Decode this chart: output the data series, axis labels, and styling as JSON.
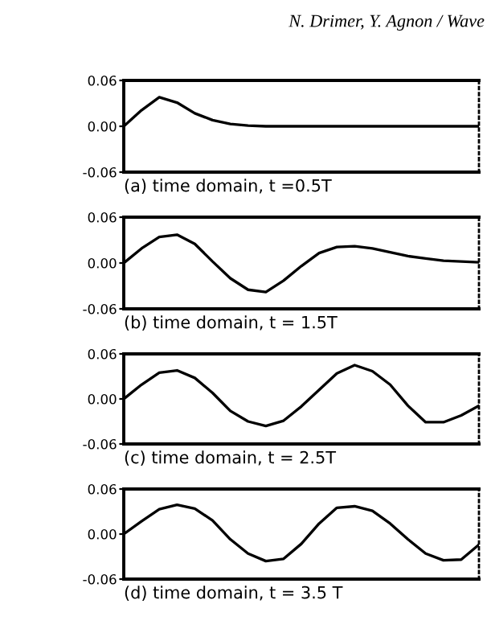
{
  "chart_data": [
    {
      "type": "line",
      "annotations": [
        "N. Drimer, Y. Agnon / Wave"
      ],
      "xlabel": "(a) time domain, t =0.5T",
      "categories": [
        null,
        null,
        null,
        null,
        null,
        null,
        null,
        null,
        null,
        null,
        null,
        null,
        null,
        null,
        null,
        null,
        null,
        null,
        null,
        null,
        null
      ],
      "series": [
        {
          "color": "#000000",
          "values": [
            0,
            0.021,
            0.038,
            0.031,
            0.017,
            0.008,
            0.003,
            0.001,
            0,
            0,
            0,
            0,
            0,
            0,
            0,
            0,
            0,
            0,
            0,
            0,
            0
          ]
        }
      ],
      "ylim": [
        -0.06,
        0.06
      ],
      "yticks": [
        {
          "value": 0.06,
          "label": "0.06"
        },
        {
          "value": 0,
          "label": "0.00"
        },
        {
          "value": -0.06,
          "label": "-0.06"
        }
      ],
      "tick_labels": "y",
      "grid": false,
      "legend": false
    },
    {
      "type": "line",
      "xlabel": "(b) time domain, t = 1.5T",
      "categories": [
        null,
        null,
        null,
        null,
        null,
        null,
        null,
        null,
        null,
        null,
        null,
        null,
        null,
        null,
        null,
        null,
        null,
        null,
        null,
        null,
        null
      ],
      "series": [
        {
          "color": "#000000",
          "values": [
            0,
            0.019,
            0.034,
            0.037,
            0.025,
            0.002,
            -0.02,
            -0.035,
            -0.038,
            -0.023,
            -0.004,
            0.013,
            0.021,
            0.022,
            0.019,
            0.014,
            0.009,
            0.006,
            0.003,
            0.002,
            0.001
          ]
        }
      ],
      "ylim": [
        -0.06,
        0.06
      ],
      "yticks": [
        {
          "value": 0.06,
          "label": "0.06"
        },
        {
          "value": 0,
          "label": "0.00"
        },
        {
          "value": -0.06,
          "label": "-0.06"
        }
      ],
      "tick_labels": "y",
      "grid": false,
      "legend": false
    },
    {
      "type": "line",
      "xlabel": "(c) time domain, t = 2.5T",
      "categories": [
        null,
        null,
        null,
        null,
        null,
        null,
        null,
        null,
        null,
        null,
        null,
        null,
        null,
        null,
        null,
        null,
        null,
        null,
        null,
        null,
        null
      ],
      "series": [
        {
          "color": "#000000",
          "values": [
            0,
            0.019,
            0.035,
            0.038,
            0.028,
            0.008,
            -0.016,
            -0.03,
            -0.036,
            -0.029,
            -0.01,
            0.012,
            0.034,
            0.045,
            0.037,
            0.019,
            -0.009,
            -0.031,
            -0.031,
            -0.022,
            -0.009
          ]
        }
      ],
      "ylim": [
        -0.06,
        0.06
      ],
      "yticks": [
        {
          "value": 0.06,
          "label": "0.06"
        },
        {
          "value": 0,
          "label": "0.00"
        },
        {
          "value": -0.06,
          "label": "-0.06"
        }
      ],
      "tick_labels": "y",
      "grid": false,
      "legend": false
    },
    {
      "type": "line",
      "xlabel": "(d) time domain, t = 3.5 T",
      "categories": [
        null,
        null,
        null,
        null,
        null,
        null,
        null,
        null,
        null,
        null,
        null,
        null,
        null,
        null,
        null,
        null,
        null,
        null,
        null,
        null,
        null
      ],
      "series": [
        {
          "color": "#000000",
          "values": [
            0,
            0.017,
            0.033,
            0.039,
            0.034,
            0.018,
            -0.007,
            -0.026,
            -0.036,
            -0.033,
            -0.013,
            0.014,
            0.035,
            0.037,
            0.031,
            0.014,
            -0.007,
            -0.026,
            -0.035,
            -0.034,
            -0.014
          ]
        }
      ],
      "ylim": [
        -0.06,
        0.06
      ],
      "yticks": [
        {
          "value": 0.06,
          "label": "0.06"
        },
        {
          "value": 0,
          "label": "0.00"
        },
        {
          "value": -0.06,
          "label": "-0.06"
        }
      ],
      "tick_labels": "y",
      "grid": false,
      "legend": false
    }
  ]
}
